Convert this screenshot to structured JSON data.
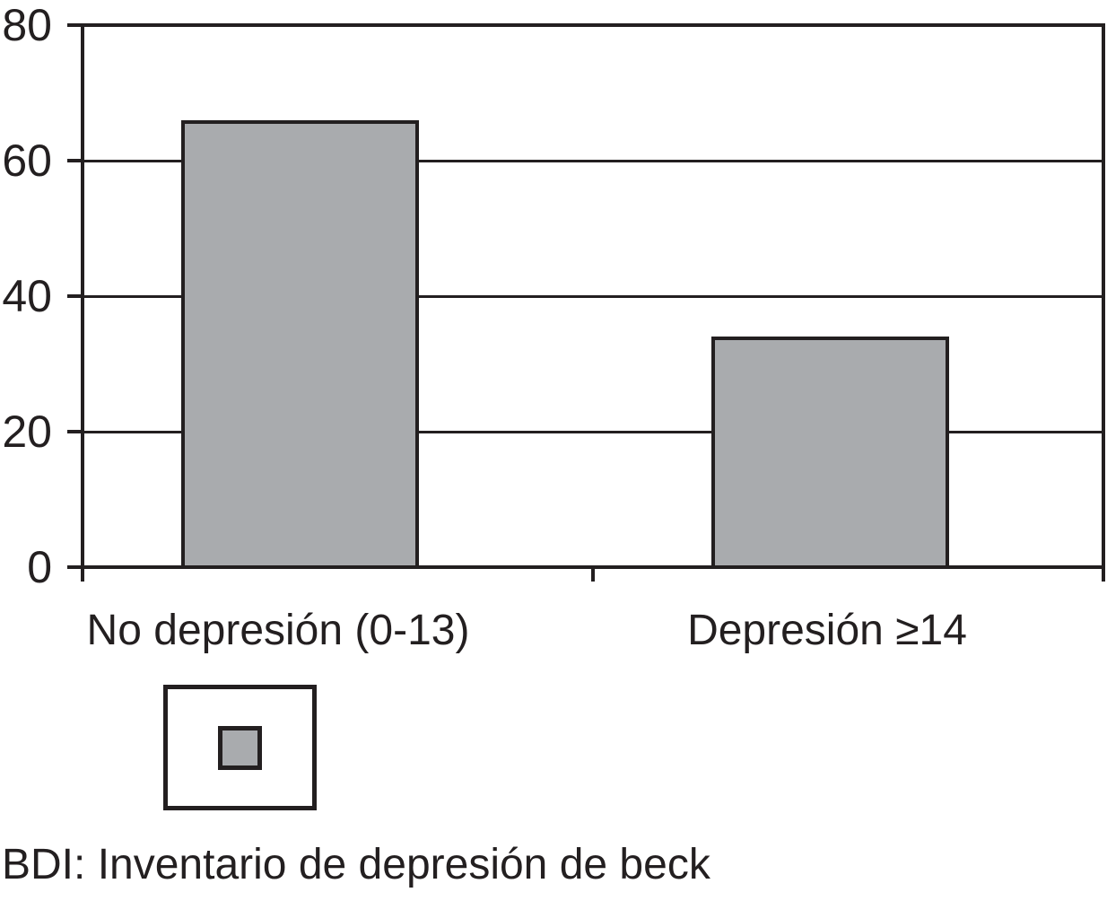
{
  "figure": {
    "caption": "BDI: Inventario de depresión de beck"
  },
  "chart_data": {
    "type": "bar",
    "categories": [
      "No depresión (0-13)",
      "Depresión ≥14"
    ],
    "values": [
      66,
      34
    ],
    "title": "",
    "xlabel": "",
    "ylabel": "",
    "ylim": [
      0,
      80
    ],
    "yticks": [
      0,
      20,
      40,
      60,
      80
    ],
    "grid": true,
    "legend_position": "below-left",
    "legend_label": "",
    "bar_color": "#a9abae",
    "line_color": "#231f20",
    "background": "#ffffff"
  }
}
